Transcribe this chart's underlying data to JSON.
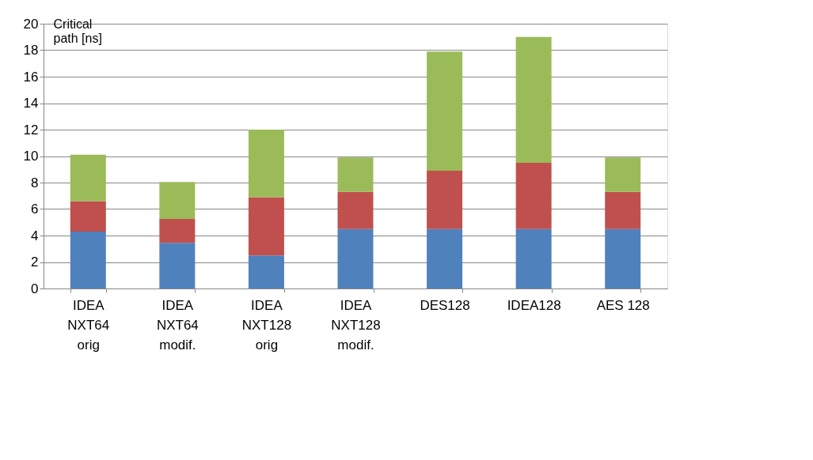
{
  "chart_data": {
    "type": "bar",
    "stacked": true,
    "ylabel": "Critical\npath [ns]",
    "categories": [
      "IDEA\nNXT64\norig",
      "IDEA\nNXT64\nmodif.",
      "IDEA\nNXT128\norig",
      "IDEA\nNXT128\nmodif.",
      "DES128",
      "IDEA128",
      "AES 128"
    ],
    "series": [
      {
        "color": "#4f81bd",
        "values": [
          4.3,
          3.45,
          2.5,
          4.5,
          4.5,
          4.5,
          4.5
        ]
      },
      {
        "color": "#c0504d",
        "values": [
          2.3,
          1.8,
          4.4,
          2.8,
          4.4,
          5.0,
          2.8
        ]
      },
      {
        "color": "#9bbb59",
        "values": [
          3.5,
          2.8,
          5.1,
          2.6,
          9.0,
          9.5,
          2.6
        ]
      }
    ],
    "ylim": [
      0,
      20
    ],
    "yticks": [
      0,
      2,
      4,
      6,
      8,
      10,
      12,
      14,
      16,
      18,
      20
    ],
    "grid": "y",
    "legend": false
  }
}
